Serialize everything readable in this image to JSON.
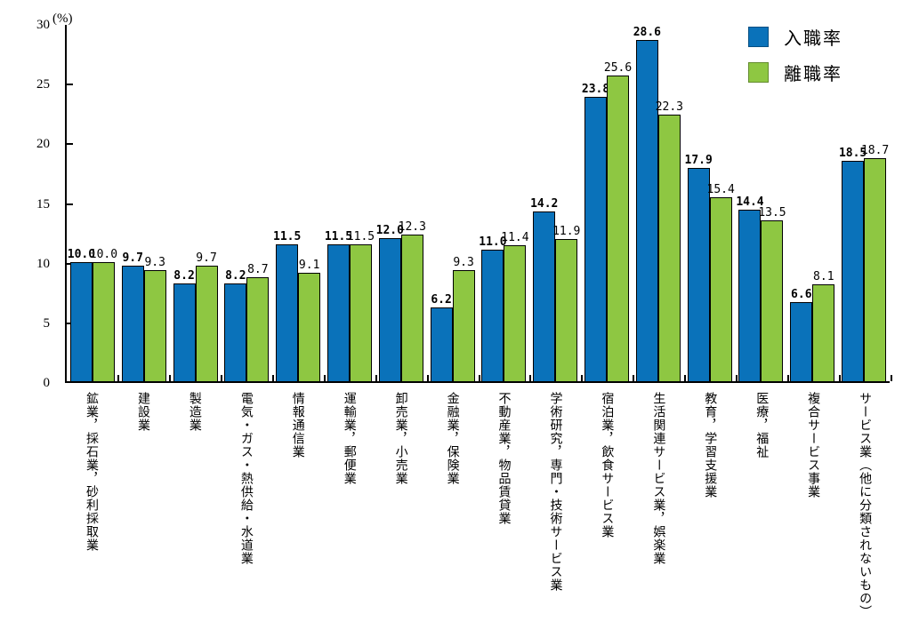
{
  "chart_data": {
    "type": "bar",
    "title": "",
    "unit_label": "(%)",
    "categories": [
      "鉱業，採石業，砂利採取業",
      "建設業",
      "製造業",
      "電気・ガス・熱供給・水道業",
      "情報通信業",
      "運輸業，郵便業",
      "卸売業，小売業",
      "金融業，保険業",
      "不動産業，物品賃貸業",
      "学術研究，専門・技術サービス業",
      "宿泊業，飲食サービス業",
      "生活関連サービス業，娯楽業",
      "教育，学習支援業",
      "医療，福祉",
      "複合サービス事業",
      "サービス業（他に分類されないもの）"
    ],
    "series": [
      {
        "name": "入職率",
        "color": "#0a72ba",
        "bar_border_color": "#000000",
        "values": [
          10.0,
          9.7,
          8.2,
          8.2,
          11.5,
          11.5,
          12.0,
          6.2,
          11.0,
          14.2,
          23.8,
          28.6,
          17.9,
          14.4,
          6.6,
          18.5
        ]
      },
      {
        "name": "離職率",
        "color": "#8ec742",
        "bar_border_color": "#000000",
        "values": [
          10.0,
          9.3,
          9.7,
          8.7,
          9.1,
          11.5,
          12.3,
          9.3,
          11.4,
          11.9,
          25.6,
          22.3,
          15.4,
          13.5,
          8.1,
          18.7
        ]
      }
    ],
    "ylim": [
      0,
      30
    ],
    "yticks": [
      0,
      5,
      10,
      15,
      20,
      25,
      30
    ],
    "grid": false,
    "value_labels": true,
    "legend_position": "top-right"
  }
}
